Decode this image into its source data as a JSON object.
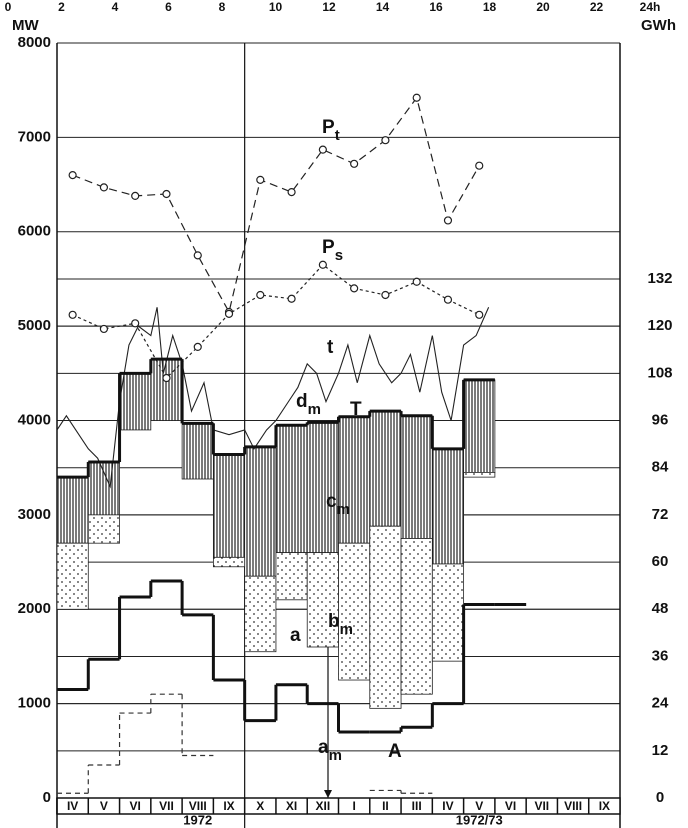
{
  "chart_data": {
    "type": "line",
    "top_ticks": [
      "0",
      "2",
      "4",
      "6",
      "8",
      "10",
      "12",
      "14",
      "16",
      "18",
      "20",
      "22",
      "24h"
    ],
    "y_label": "MW",
    "y2_label": "GWh",
    "categories": [
      "IV",
      "V",
      "VI",
      "VII",
      "VIII",
      "IX",
      "X",
      "XI",
      "XII",
      "I",
      "II",
      "III",
      "IV",
      "V",
      "VI",
      "VII",
      "VIII",
      "IX"
    ],
    "years": [
      {
        "label": "1972",
        "span": [
          0,
          9
        ]
      },
      {
        "label": "1972/73",
        "span": [
          9,
          18
        ]
      }
    ],
    "ylim": [
      0,
      8000
    ],
    "yticks": [
      0,
      1000,
      2000,
      3000,
      4000,
      5000,
      6000,
      7000,
      8000
    ],
    "y2lim": [
      0,
      192
    ],
    "y2ticks": [
      0,
      12,
      24,
      36,
      48,
      60,
      72,
      84,
      96,
      108,
      120,
      132
    ],
    "grid": true,
    "series": [
      {
        "style": "dashed-circles",
        "color": "#222",
        "values": [
          6600,
          6470,
          6380,
          6400,
          5750,
          5150,
          6550,
          6420,
          6870,
          6720,
          6970,
          7420,
          6120,
          6700,
          null,
          null,
          null,
          null
        ]
      },
      {
        "style": "dotted-circles",
        "color": "#222",
        "values": [
          5120,
          4970,
          5030,
          4450,
          4780,
          5130,
          5330,
          5290,
          5650,
          5400,
          5330,
          5470,
          5280,
          5120,
          null,
          null,
          null,
          null
        ]
      },
      {
        "style": "step",
        "color": "#111",
        "values": [
          3400,
          3560,
          4500,
          4650,
          3970,
          3640,
          3720,
          3950,
          3980,
          4040,
          4100,
          4050,
          3700,
          4430,
          null,
          null,
          null,
          null
        ]
      },
      {
        "style": "step",
        "color": "#111",
        "values": [
          1150,
          1470,
          2130,
          2300,
          1940,
          1250,
          820,
          1200,
          1000,
          700,
          700,
          750,
          1000,
          2050,
          2050,
          null,
          null,
          null
        ]
      },
      {
        "style": "dashed-step",
        "color": "#333",
        "values": [
          50,
          350,
          900,
          1100,
          450,
          null,
          null,
          null,
          null,
          null,
          80,
          50,
          null,
          null,
          null,
          null,
          null,
          null
        ]
      },
      {
        "style": "hatch-floor",
        "fill_to": 2,
        "color": "#222",
        "values": [
          2700,
          3000,
          3900,
          4000,
          3380,
          2550,
          2350,
          2600,
          2600,
          2700,
          2880,
          2750,
          2480,
          3450,
          null,
          null,
          null,
          null
        ]
      },
      {
        "style": "dot-floor",
        "fill_to": 5,
        "color": "#222",
        "values": [
          2000,
          2700,
          null,
          null,
          null,
          2450,
          1550,
          2100,
          1600,
          1250,
          950,
          1100,
          1450,
          3400,
          null,
          null,
          null,
          null
        ]
      }
    ],
    "curve": {
      "color": "#222",
      "x": [
        0,
        0.3,
        0.6,
        1,
        1.3,
        1.7,
        2,
        2.3,
        2.6,
        3,
        3.2,
        3.4,
        3.7,
        4,
        4.3,
        4.7,
        5,
        5.5,
        6,
        6.3,
        6.7,
        7,
        7.4,
        7.7,
        8,
        8.3,
        8.6,
        9,
        9.3,
        9.6,
        10,
        10.3,
        10.7,
        11,
        11.3,
        11.6,
        12,
        12.3,
        12.6,
        13,
        13.4,
        13.8
      ],
      "values": [
        3900,
        4050,
        3900,
        3700,
        3600,
        3300,
        4200,
        4800,
        5000,
        4900,
        5200,
        4500,
        4900,
        4600,
        4100,
        4400,
        3900,
        3850,
        3900,
        3700,
        3900,
        4000,
        4200,
        4350,
        4600,
        4500,
        4200,
        4500,
        4800,
        4400,
        4900,
        4600,
        4400,
        4500,
        4700,
        4300,
        4900,
        4300,
        4000,
        4800,
        4900,
        5200
      ]
    },
    "annotations": [
      {
        "text": "P",
        "sub": "t"
      },
      {
        "text": "P",
        "sub": "s"
      },
      {
        "text": "t"
      },
      {
        "text": "d",
        "sub": "m"
      },
      {
        "text": "T"
      },
      {
        "text": "c",
        "sub": "m"
      },
      {
        "text": "b",
        "sub": "m"
      },
      {
        "text": "a"
      },
      {
        "text": "a",
        "sub": "m"
      },
      {
        "text": "A"
      }
    ]
  }
}
